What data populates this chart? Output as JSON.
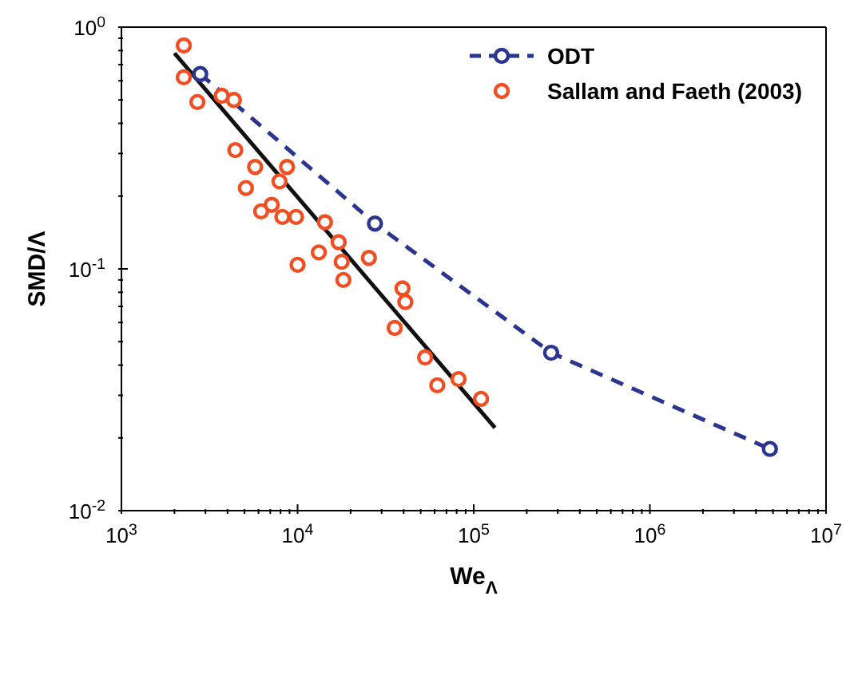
{
  "chart_data": {
    "type": "scatter",
    "xlabel": "We$_{Λ}$",
    "ylabel": "SMD/Λ",
    "log": "xy",
    "grid": false,
    "legend": "top right",
    "xlim": [
      1000,
      10000000
    ],
    "xticks": [
      {
        "value": 1000,
        "label": "10$^{3}$"
      },
      {
        "value": 2000,
        "label": null
      },
      {
        "value": 3000,
        "label": null
      },
      {
        "value": 4000,
        "label": null
      },
      {
        "value": 5000,
        "label": null
      },
      {
        "value": 6000,
        "label": null
      },
      {
        "value": 7000,
        "label": null
      },
      {
        "value": 8000,
        "label": null
      },
      {
        "value": 9000,
        "label": null
      },
      {
        "value": 10000,
        "label": "10$^{4}$"
      },
      {
        "value": 20000,
        "label": null
      },
      {
        "value": 30000,
        "label": null
      },
      {
        "value": 40000,
        "label": null
      },
      {
        "value": 50000,
        "label": null
      },
      {
        "value": 60000,
        "label": null
      },
      {
        "value": 70000,
        "label": null
      },
      {
        "value": 80000,
        "label": null
      },
      {
        "value": 90000,
        "label": null
      },
      {
        "value": 100000,
        "label": "10$^{5}$"
      },
      {
        "value": 200000,
        "label": null
      },
      {
        "value": 300000,
        "label": null
      },
      {
        "value": 400000,
        "label": null
      },
      {
        "value": 500000,
        "label": null
      },
      {
        "value": 600000,
        "label": null
      },
      {
        "value": 700000,
        "label": null
      },
      {
        "value": 800000,
        "label": null
      },
      {
        "value": 900000,
        "label": null
      },
      {
        "value": 1000000,
        "label": "10$^{6}$"
      },
      {
        "value": 2000000,
        "label": null
      },
      {
        "value": 3000000,
        "label": null
      },
      {
        "value": 4000000,
        "label": null
      },
      {
        "value": 5000000,
        "label": null
      },
      {
        "value": 6000000,
        "label": null
      },
      {
        "value": 7000000,
        "label": null
      },
      {
        "value": 8000000,
        "label": null
      },
      {
        "value": 9000000,
        "label": null
      },
      {
        "value": 10000000,
        "label": "10$^{7}$"
      }
    ],
    "ylim": [
      0.01,
      1
    ],
    "yticks": [
      {
        "value": 0.01,
        "label": "10$^{-2}$"
      },
      {
        "value": 0.02,
        "label": null
      },
      {
        "value": 0.03,
        "label": null
      },
      {
        "value": 0.04,
        "label": null
      },
      {
        "value": 0.05,
        "label": null
      },
      {
        "value": 0.06,
        "label": null
      },
      {
        "value": 0.07,
        "label": null
      },
      {
        "value": 0.08,
        "label": null
      },
      {
        "value": 0.09,
        "label": null
      },
      {
        "value": 0.1,
        "label": "10$^{-1}$"
      },
      {
        "value": 0.2,
        "label": null
      },
      {
        "value": 0.3,
        "label": null
      },
      {
        "value": 0.4,
        "label": null
      },
      {
        "value": 0.5,
        "label": null
      },
      {
        "value": 0.6,
        "label": null
      },
      {
        "value": 0.7,
        "label": null
      },
      {
        "value": 0.8,
        "label": null
      },
      {
        "value": 0.9,
        "label": null
      },
      {
        "value": 1,
        "label": "10$^{0}$"
      }
    ],
    "series": [
      {
        "name": "ODT",
        "type": "line",
        "color": "#2b3590",
        "marker": "circle",
        "line_style": "dashed",
        "x": [
          2800,
          27500,
          275000,
          4800000
        ],
        "values": [
          0.64,
          0.154,
          0.045,
          0.018
        ]
      },
      {
        "name": "Sallam and Faeth (2003)",
        "color": "#f04e23",
        "marker": "circle",
        "x": [
          2260,
          2260,
          2700,
          3710,
          4350,
          4430,
          5740,
          8710,
          5090,
          7890,
          7130,
          6210,
          8200,
          9800,
          14300,
          17100,
          13200,
          25400,
          17800,
          10000,
          18200,
          39400,
          40900,
          35600,
          53000,
          82000,
          62100,
          110000
        ],
        "values": [
          0.84,
          0.62,
          0.49,
          0.52,
          0.5,
          0.31,
          0.264,
          0.264,
          0.216,
          0.23,
          0.184,
          0.173,
          0.164,
          0.164,
          0.156,
          0.129,
          0.117,
          0.111,
          0.107,
          0.104,
          0.09,
          0.083,
          0.073,
          0.057,
          0.043,
          0.035,
          0.033,
          0.029
        ]
      },
      {
        "type": "line",
        "color": "#111111",
        "marker": "none",
        "line_style": "solid",
        "x": [
          2000,
          132000
        ],
        "values": [
          0.78,
          0.022
        ]
      }
    ]
  }
}
